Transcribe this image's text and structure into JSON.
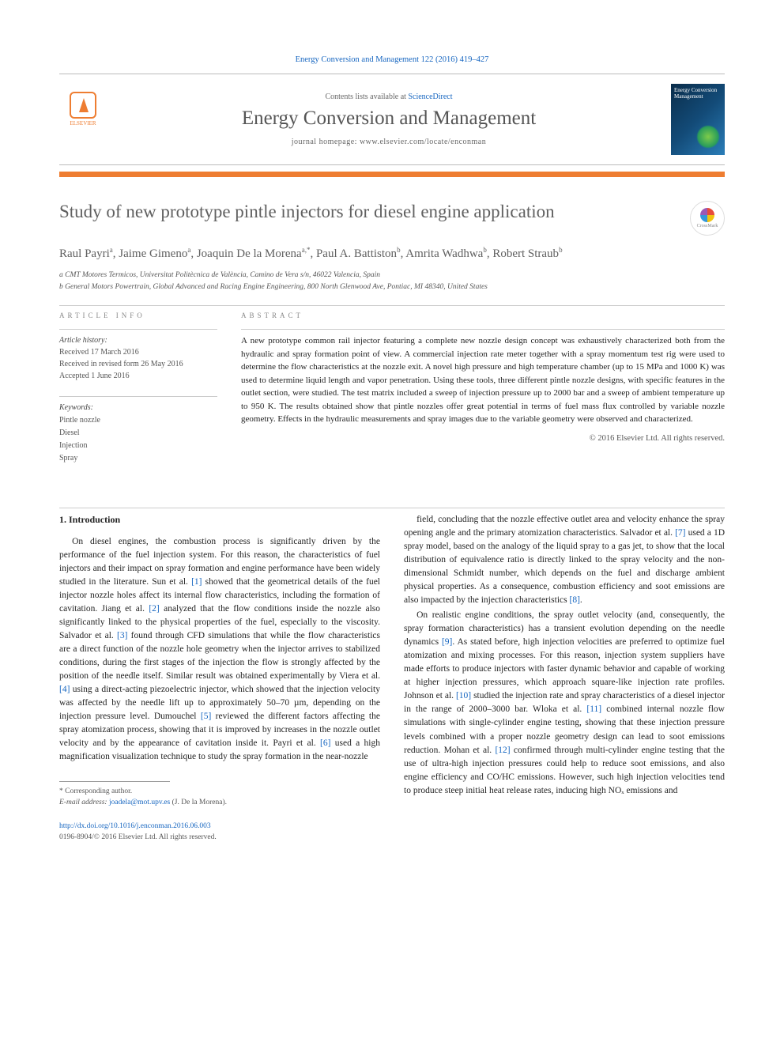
{
  "metaBar": {
    "journalRef": "Energy Conversion and Management 122 (2016) 419–427",
    "link": "ScienceDirect"
  },
  "header": {
    "publisherName": "ELSEVIER",
    "contentsListPrefix": "Contents lists available at ",
    "journalTitle": "Energy Conversion and Management",
    "homepagePrefix": "journal homepage: ",
    "homepageUrl": "www.elsevier.com/locate/enconman",
    "coverLabel": "Energy Conversion Management",
    "ruleColor": "#ee7d31"
  },
  "article": {
    "title": "Study of new prototype pintle injectors for diesel engine application",
    "crossmarkLabel": "CrossMark",
    "authorsHtml": "Raul Payri<sup class='sup'>a</sup>, Jaime Gimeno<sup class='sup'>a</sup>, Joaquin De la Morena<sup class='sup'>a,*</sup>, Paul A. Battiston<sup class='sup'>b</sup>, Amrita Wadhwa<sup class='sup'>b</sup>, Robert Straub<sup class='sup'>b</sup>",
    "affiliations": [
      "a CMT Motores Termicos, Universitat Politècnica de València, Camino de Vera s/n, 46022 Valencia, Spain",
      "b General Motors Powertrain, Global Advanced and Racing Engine Engineering, 800 North Glenwood Ave, Pontiac, MI 48340, United States"
    ]
  },
  "info": {
    "h": "ARTICLE INFO",
    "histHead": "Article history:",
    "hist": [
      "Received 17 March 2016",
      "Received in revised form 26 May 2016",
      "Accepted 1 June 2016"
    ],
    "kwHead": "Keywords:",
    "kw": [
      "Pintle nozzle",
      "Diesel",
      "Injection",
      "Spray"
    ]
  },
  "abstract": {
    "h": "ABSTRACT",
    "text": "A new prototype common rail injector featuring a complete new nozzle design concept was exhaustively characterized both from the hydraulic and spray formation point of view. A commercial injection rate meter together with a spray momentum test rig were used to determine the flow characteristics at the nozzle exit. A novel high pressure and high temperature chamber (up to 15 MPa and 1000 K) was used to determine liquid length and vapor penetration. Using these tools, three different pintle nozzle designs, with specific features in the outlet section, were studied. The test matrix included a sweep of injection pressure up to 2000 bar and a sweep of ambient temperature up to 950 K. The results obtained show that pintle nozzles offer great potential in terms of fuel mass flux controlled by variable nozzle geometry. Effects in the hydraulic measurements and spray images due to the variable geometry were observed and characterized.",
    "copyright": "© 2016 Elsevier Ltd. All rights reserved."
  },
  "body": {
    "h1": "1. Introduction",
    "p1": "On diesel engines, the combustion process is significantly driven by the performance of the fuel injection system. For this reason, the characteristics of fuel injectors and their impact on spray formation and engine performance have been widely studied in the literature. Sun et al. [1] showed that the geometrical details of the fuel injector nozzle holes affect its internal flow characteristics, including the formation of cavitation. Jiang et al. [2] analyzed that the flow conditions inside the nozzle also significantly linked to the physical properties of the fuel, especially to the viscosity. Salvador et al. [3] found through CFD simulations that while the flow characteristics are a direct function of the nozzle hole geometry when the injector arrives to stabilized conditions, during the first stages of the injection the flow is strongly affected by the position of the needle itself. Similar result was obtained experimentally by Viera et al. [4] using a direct-acting piezoelectric injector, which showed that the injection velocity was affected by the needle lift up to approximately 50–70 µm, depending on the injection pressure level. Dumouchel [5] reviewed the different factors affecting the spray atomization process, showing that it is improved by increases in the nozzle outlet velocity and by the appearance of cavitation inside it. Payri et al. [6] used a high magnification visualization technique to study the spray formation in the near-nozzle ",
    "p2": "field, concluding that the nozzle effective outlet area and velocity enhance the spray opening angle and the primary atomization characteristics. Salvador et al. [7] used a 1D spray model, based on the analogy of the liquid spray to a gas jet, to show that the local distribution of equivalence ratio is directly linked to the spray velocity and the non-dimensional Schmidt number, which depends on the fuel and discharge ambient physical properties. As a consequence, combustion efficiency and soot emissions are also impacted by the injection characteristics [8].",
    "p3": "On realistic engine conditions, the spray outlet velocity (and, consequently, the spray formation characteristics) has a transient evolution depending on the needle dynamics [9]. As stated before, high injection velocities are preferred to optimize fuel atomization and mixing processes. For this reason, injection system suppliers have made efforts to produce injectors with faster dynamic behavior and capable of working at higher injection pressures, which approach square-like injection rate profiles. Johnson et al. [10] studied the injection rate and spray characteristics of a diesel injector in the range of 2000–3000 bar. Wloka et al. [11] combined internal nozzle flow simulations with single-cylinder engine testing, showing that these injection pressure levels combined with a proper nozzle geometry design can lead to soot emissions reduction. Mohan et al. [12] confirmed through multi-cylinder engine testing that the use of ultra-high injection pressures could help to reduce soot emissions, and also engine efficiency and CO/HC emissions. However, such high injection velocities tend to produce steep initial heat release rates, inducing high NOₓ emissions and"
  },
  "footnote": {
    "corr": "* Corresponding author.",
    "emailLabel": "E-mail address: ",
    "email": "joadela@mot.upv.es",
    "emailTail": " (J. De la Morena)."
  },
  "doi": {
    "url": "http://dx.doi.org/10.1016/j.enconman.2016.06.003",
    "issn": "0196-8904/© 2016 Elsevier Ltd. All rights reserved."
  },
  "colors": {
    "link": "#1565c0",
    "accent": "#ee7d31",
    "text": "#232323",
    "muted": "#555"
  }
}
